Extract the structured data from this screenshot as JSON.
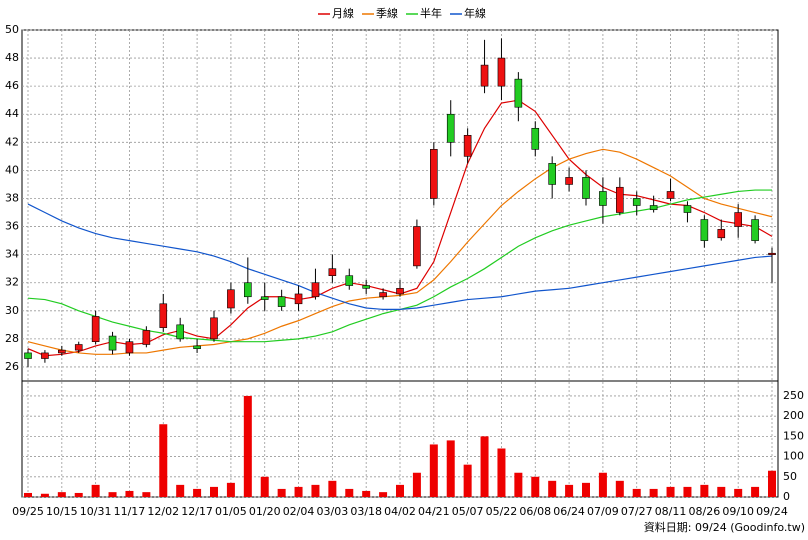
{
  "chart_data": {
    "type": "candlestick",
    "categories": [
      "09/25",
      null,
      "10/15",
      null,
      "10/31",
      null,
      "11/17",
      null,
      "12/02",
      null,
      "12/17",
      null,
      "01/05",
      null,
      "01/20",
      null,
      "02/04",
      null,
      "03/03",
      null,
      "03/18",
      null,
      "04/02",
      null,
      "04/21",
      null,
      "05/07",
      null,
      "05/22",
      null,
      "06/08",
      null,
      "06/24",
      null,
      "07/09",
      null,
      "07/27",
      null,
      "08/11",
      null,
      "08/26",
      null,
      "09/10",
      null,
      "09/24"
    ],
    "open": [
      27.0,
      26.6,
      27.0,
      27.2,
      27.8,
      28.2,
      27.0,
      27.6,
      28.8,
      29.0,
      27.5,
      28.0,
      30.2,
      32.0,
      31.0,
      31.0,
      30.5,
      31.0,
      32.5,
      32.5,
      31.8,
      31.0,
      31.2,
      33.2,
      38.0,
      44.0,
      41.0,
      46.0,
      46.0,
      46.5,
      43.0,
      40.5,
      39.0,
      39.5,
      38.5,
      37.0,
      38.0,
      37.5,
      38.0,
      37.5,
      36.5,
      35.2,
      36.0,
      36.5,
      34.0
    ],
    "high": [
      27.3,
      27.2,
      27.5,
      27.8,
      30.0,
      28.5,
      28.0,
      28.9,
      31.2,
      29.5,
      28.0,
      30.0,
      32.0,
      33.8,
      32.0,
      31.5,
      31.8,
      33.0,
      34.0,
      33.0,
      32.2,
      31.6,
      32.2,
      36.5,
      42.0,
      45.0,
      43.0,
      49.3,
      49.4,
      47.0,
      43.5,
      41.0,
      40.2,
      40.0,
      39.5,
      39.5,
      38.5,
      38.2,
      39.4,
      37.8,
      36.8,
      36.5,
      37.6,
      36.8,
      34.5
    ],
    "low": [
      26.0,
      26.3,
      26.8,
      27.0,
      27.6,
      26.9,
      26.8,
      27.4,
      28.5,
      27.8,
      27.0,
      27.8,
      29.8,
      30.5,
      30.0,
      30.0,
      30.0,
      30.8,
      32.0,
      31.5,
      31.2,
      30.8,
      31.0,
      33.0,
      37.5,
      41.0,
      40.5,
      45.5,
      45.0,
      43.5,
      41.0,
      38.0,
      38.5,
      37.5,
      36.2,
      36.8,
      36.8,
      37.0,
      37.8,
      36.3,
      34.5,
      35.0,
      35.2,
      34.8,
      32.0
    ],
    "close": [
      26.6,
      27.0,
      27.2,
      27.6,
      29.6,
      27.2,
      27.8,
      28.6,
      30.5,
      28.0,
      27.3,
      29.5,
      31.5,
      31.0,
      30.8,
      30.3,
      31.2,
      32.0,
      33.0,
      31.8,
      31.6,
      31.3,
      31.6,
      36.0,
      41.5,
      42.0,
      42.5,
      47.5,
      48.0,
      44.5,
      41.5,
      39.0,
      39.5,
      38.0,
      37.5,
      38.8,
      37.5,
      37.2,
      38.5,
      37.0,
      35.0,
      35.8,
      37.0,
      35.0,
      34.1
    ],
    "volume": [
      10,
      8,
      12,
      10,
      30,
      12,
      15,
      12,
      180,
      30,
      20,
      25,
      35,
      250,
      50,
      20,
      25,
      30,
      40,
      20,
      15,
      12,
      30,
      60,
      130,
      140,
      80,
      150,
      120,
      60,
      50,
      40,
      30,
      35,
      60,
      40,
      20,
      20,
      25,
      25,
      30,
      25,
      20,
      25,
      65
    ],
    "up_color": "#ee1111",
    "down_color": "#22cc22",
    "volume_color": "#ee0000",
    "series": [
      {
        "name": "月線",
        "color": "#dd0000",
        "values": [
          27.3,
          26.8,
          26.9,
          27.1,
          27.5,
          27.8,
          27.6,
          27.7,
          28.3,
          28.6,
          28.2,
          28.0,
          29.0,
          30.2,
          31.0,
          31.0,
          30.8,
          31.0,
          31.6,
          32.0,
          31.8,
          31.5,
          31.2,
          31.6,
          33.5,
          37.0,
          40.5,
          43.0,
          44.8,
          45.0,
          44.2,
          42.5,
          40.8,
          39.7,
          38.8,
          38.3,
          38.2,
          37.9,
          37.6,
          37.5,
          37.0,
          36.4,
          36.2,
          36.0,
          35.3
        ]
      },
      {
        "name": "季線",
        "color": "#ee7700",
        "values": [
          27.8,
          27.5,
          27.2,
          27.0,
          26.9,
          26.9,
          27.0,
          27.0,
          27.2,
          27.4,
          27.5,
          27.6,
          27.8,
          28.0,
          28.4,
          28.9,
          29.3,
          29.8,
          30.3,
          30.7,
          30.9,
          31.0,
          31.1,
          31.3,
          32.2,
          33.5,
          34.9,
          36.2,
          37.5,
          38.5,
          39.4,
          40.2,
          40.8,
          41.2,
          41.5,
          41.3,
          40.8,
          40.2,
          39.6,
          38.8,
          38.0,
          37.6,
          37.3,
          37.0,
          36.7
        ]
      },
      {
        "name": "半年",
        "color": "#22cc22",
        "values": [
          30.9,
          30.8,
          30.5,
          30.0,
          29.6,
          29.2,
          28.9,
          28.6,
          28.4,
          28.1,
          28.0,
          27.9,
          27.8,
          27.8,
          27.8,
          27.9,
          28.0,
          28.2,
          28.5,
          29.0,
          29.4,
          29.8,
          30.1,
          30.4,
          31.0,
          31.7,
          32.3,
          33.0,
          33.8,
          34.6,
          35.2,
          35.7,
          36.1,
          36.4,
          36.7,
          36.9,
          37.1,
          37.3,
          37.6,
          37.9,
          38.1,
          38.3,
          38.5,
          38.6,
          38.6
        ]
      },
      {
        "name": "年線",
        "color": "#1155cc",
        "values": [
          37.6,
          37.0,
          36.4,
          35.9,
          35.5,
          35.2,
          35.0,
          34.8,
          34.6,
          34.4,
          34.2,
          33.9,
          33.5,
          33.0,
          32.6,
          32.2,
          31.8,
          31.3,
          30.9,
          30.5,
          30.2,
          30.1,
          30.1,
          30.2,
          30.4,
          30.6,
          30.8,
          30.9,
          31.0,
          31.2,
          31.4,
          31.5,
          31.6,
          31.8,
          32.0,
          32.2,
          32.4,
          32.6,
          32.8,
          33.0,
          33.2,
          33.4,
          33.6,
          33.8,
          33.9
        ]
      }
    ],
    "ylim": [
      25,
      50
    ],
    "yticks": [
      26,
      28,
      30,
      32,
      34,
      36,
      38,
      40,
      42,
      44,
      46,
      48,
      50
    ],
    "y2lim": [
      0,
      287
    ],
    "y2ticks": [
      0,
      50,
      100,
      150,
      200,
      250
    ],
    "grid": true,
    "source": "資料日期: 09/24  (Goodinfo.tw)"
  }
}
